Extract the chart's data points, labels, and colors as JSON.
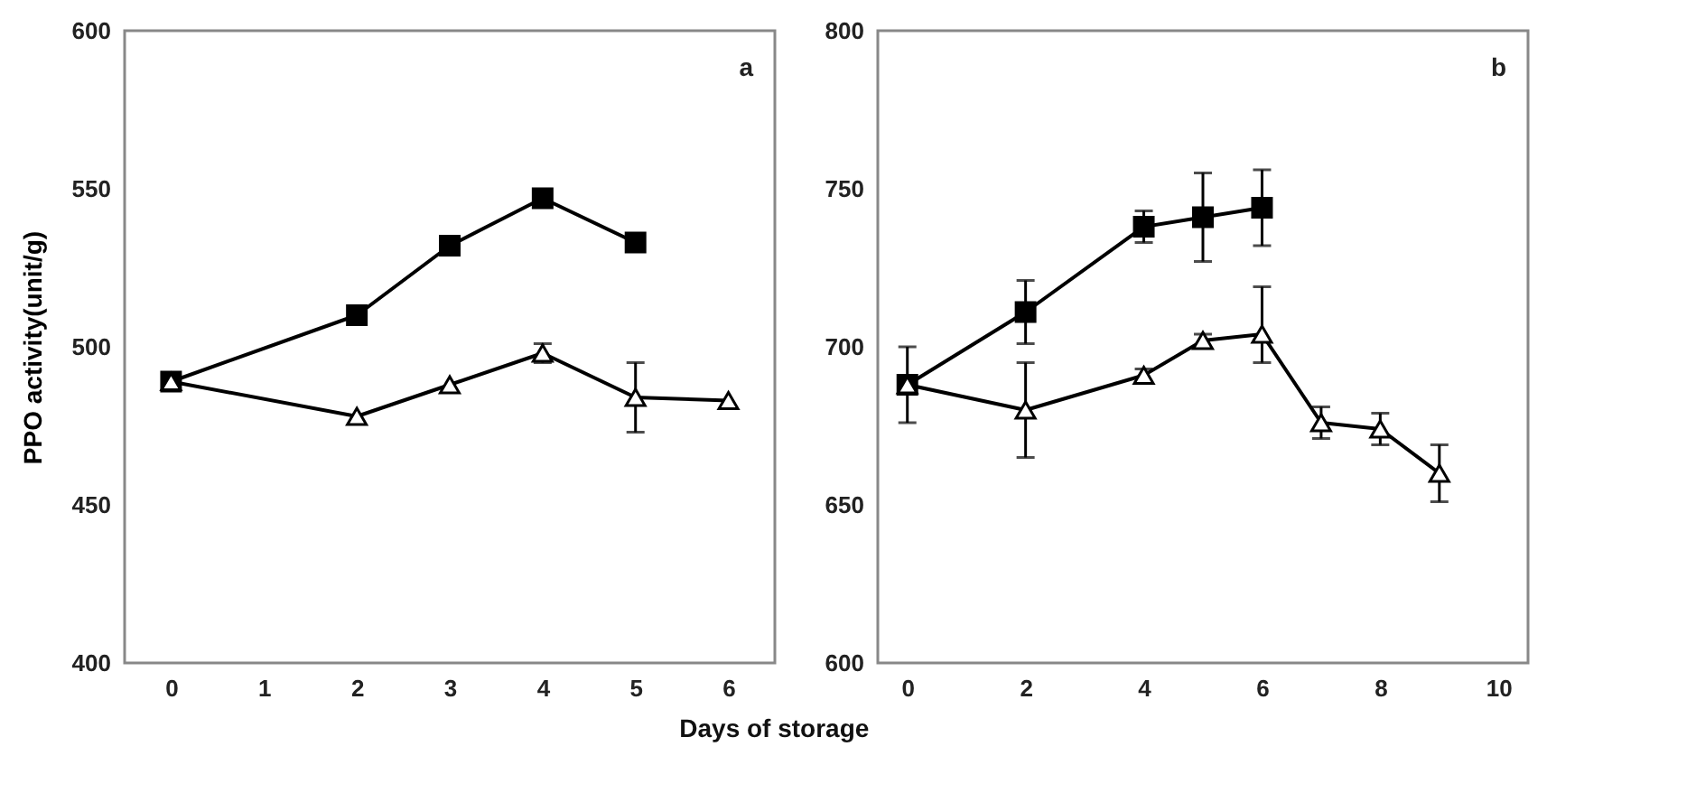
{
  "chart_data": [
    {
      "type": "line",
      "ylabel": "PPO activity(unit/g)",
      "xlabel": "Days of storage",
      "annotations": [
        "a"
      ],
      "categories": [
        "0",
        "1",
        "2",
        "3",
        "4",
        "5",
        "6"
      ],
      "ylim": [
        400,
        600
      ],
      "yticks": [
        400,
        450,
        500,
        550,
        600
      ],
      "grid": false,
      "series": [
        {
          "color": "#000000",
          "marker": "square",
          "values": [
            489,
            null,
            510,
            532,
            547,
            533,
            null
          ],
          "errors": [
            null,
            null,
            3,
            null,
            null,
            2,
            null
          ]
        },
        {
          "color": "#000000",
          "marker": "triangle",
          "values": [
            489,
            null,
            478,
            488,
            498,
            484,
            483
          ],
          "errors": [
            null,
            null,
            null,
            null,
            3,
            11,
            null
          ]
        }
      ]
    },
    {
      "type": "line",
      "annotations": [
        "b"
      ],
      "xlim": [
        -0.5,
        10.5
      ],
      "xticks": [
        0,
        2,
        4,
        6,
        8,
        10
      ],
      "ylim": [
        600,
        800
      ],
      "yticks": [
        600,
        650,
        700,
        750,
        800
      ],
      "grid": false,
      "series": [
        {
          "color": "#000000",
          "marker": "square",
          "x": [
            0,
            2,
            4,
            5,
            6
          ],
          "values": [
            688,
            711,
            738,
            741,
            744
          ],
          "errors": [
            12,
            10,
            5,
            14,
            12
          ]
        },
        {
          "color": "#000000",
          "marker": "triangle",
          "x": [
            0,
            2,
            4,
            5,
            6,
            7,
            8,
            9
          ],
          "values": [
            688,
            680,
            691,
            702,
            704,
            676,
            674,
            660
          ],
          "errors": [
            null,
            15,
            2,
            2,
            [
              695,
              719
            ],
            5,
            5,
            9
          ]
        }
      ]
    }
  ]
}
